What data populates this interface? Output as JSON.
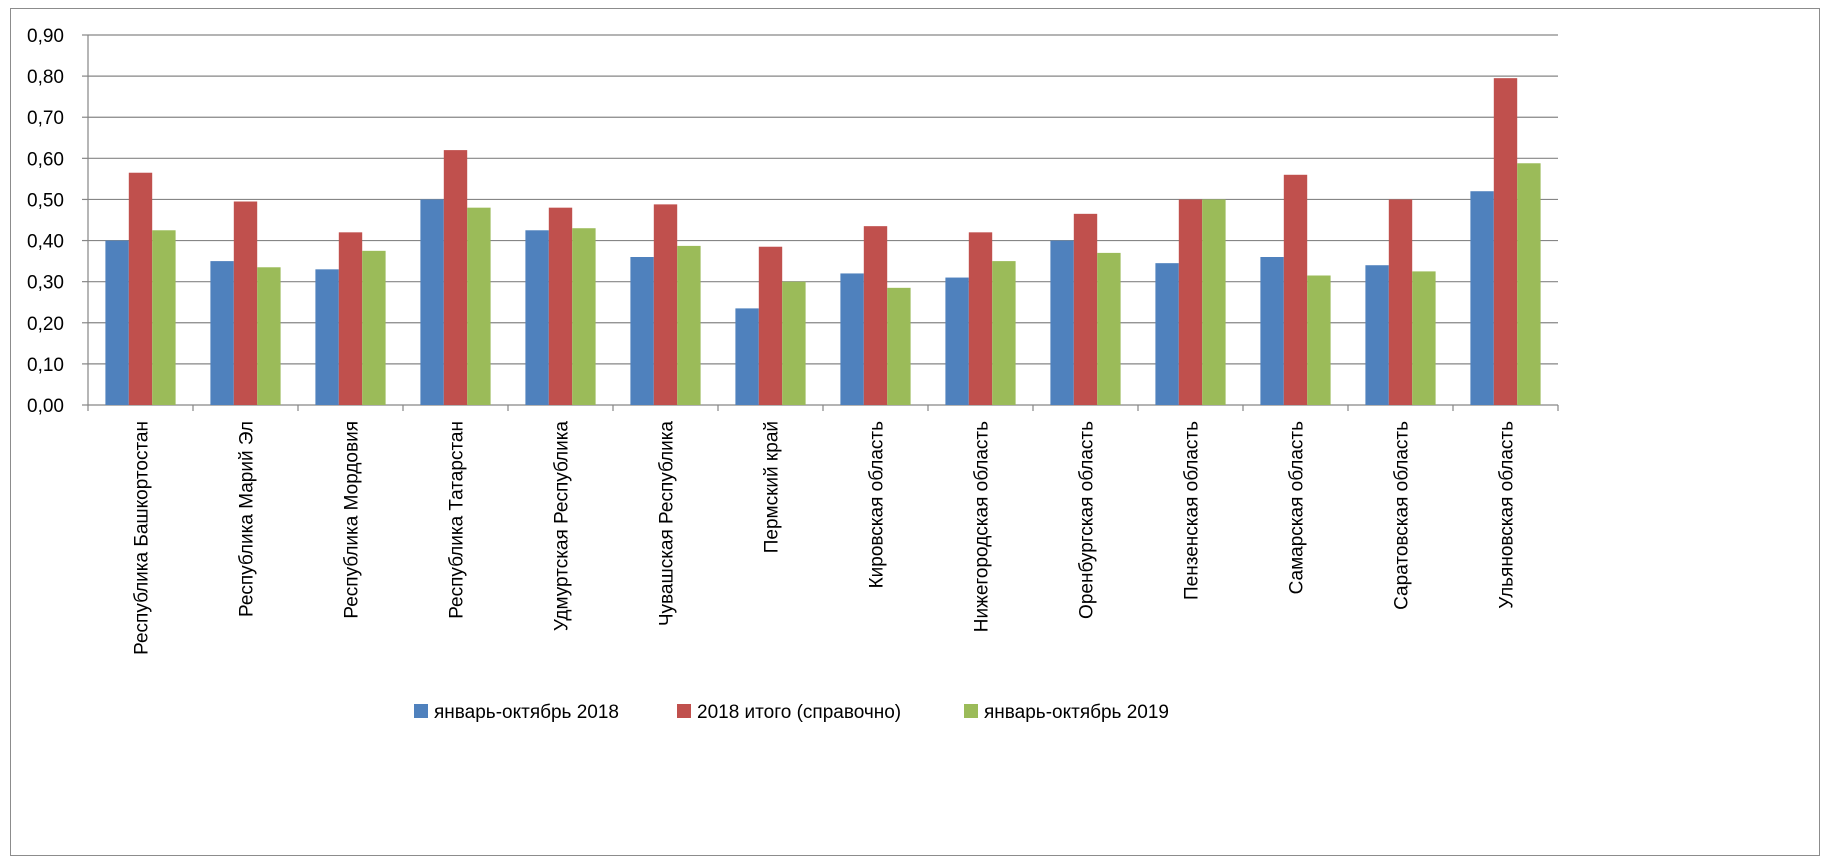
{
  "chart_data": {
    "type": "bar",
    "title": "",
    "xlabel": "",
    "ylabel": "",
    "ylim": [
      0,
      0.9
    ],
    "yticks": [
      "0,00",
      "0,10",
      "0,20",
      "0,30",
      "0,40",
      "0,50",
      "0,60",
      "0,70",
      "0,80",
      "0,90"
    ],
    "grid": "horizontal",
    "legend_position": "bottom",
    "categories": [
      "Республика Башкортостан",
      "Республика Марий Эл",
      "Республика Мордовия",
      "Республика Татарстан",
      "Удмуртская Республика",
      "Чувашская Республика",
      "Пермский край",
      "Кировская область",
      "Нижегородская область",
      "Оренбургская область",
      "Пензенская область",
      "Самарская область",
      "Саратовская область",
      "Ульяновская область"
    ],
    "series": [
      {
        "name": "январь-октябрь 2018",
        "color": "#4f81bd",
        "values": [
          0.4,
          0.35,
          0.33,
          0.5,
          0.425,
          0.36,
          0.235,
          0.32,
          0.31,
          0.4,
          0.345,
          0.36,
          0.34,
          0.52
        ]
      },
      {
        "name": "2018 итого (справочно)",
        "color": "#c0504d",
        "values": [
          0.565,
          0.495,
          0.42,
          0.62,
          0.48,
          0.488,
          0.385,
          0.435,
          0.42,
          0.465,
          0.5,
          0.56,
          0.5,
          0.795
        ]
      },
      {
        "name": "январь-октябрь 2019",
        "color": "#9bbb59",
        "values": [
          0.425,
          0.335,
          0.375,
          0.48,
          0.43,
          0.387,
          0.3,
          0.285,
          0.35,
          0.37,
          0.5,
          0.315,
          0.325,
          0.588
        ]
      }
    ]
  }
}
